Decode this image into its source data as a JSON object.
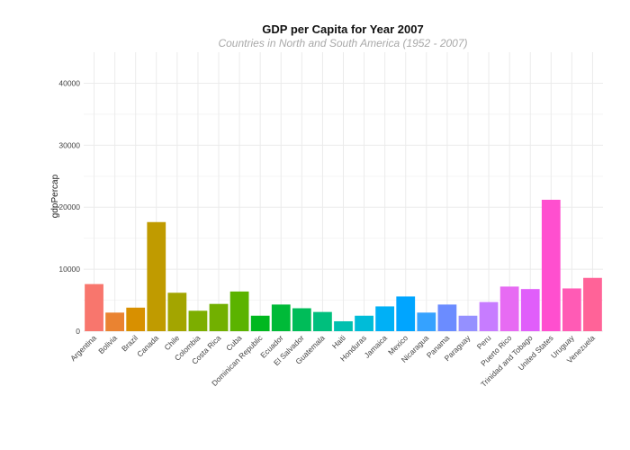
{
  "chart_data": {
    "type": "bar",
    "title": "GDP per Capita for Year 2007",
    "subtitle": "Countries in North and South America (1952 - 2007)",
    "xlabel": "",
    "ylabel": "gdpPercap",
    "ylim": [
      0,
      45000
    ],
    "yticks": [
      0,
      10000,
      20000,
      30000,
      40000
    ],
    "grid": true,
    "legend": "none",
    "categories": [
      "Argentina",
      "Bolivia",
      "Brazil",
      "Canada",
      "Chile",
      "Colombia",
      "Costa Rica",
      "Cuba",
      "Dominican Republic",
      "Ecuador",
      "El Salvador",
      "Guatemala",
      "Haiti",
      "Honduras",
      "Jamaica",
      "Mexico",
      "Nicaragua",
      "Panama",
      "Paraguay",
      "Peru",
      "Puerto Rico",
      "Trinidad and Tobago",
      "United States",
      "Uruguay",
      "Venezuela"
    ],
    "values": [
      7600,
      3000,
      3800,
      17600,
      6200,
      3300,
      4400,
      6400,
      2500,
      4300,
      3700,
      3100,
      1600,
      2500,
      4000,
      5600,
      3000,
      4300,
      2500,
      4700,
      7200,
      6800,
      21200,
      6900,
      8600
    ],
    "colors": [
      "#F8766D",
      "#EA8331",
      "#D89000",
      "#C09B00",
      "#A3A500",
      "#7CAE00",
      "#72B000",
      "#5BB300",
      "#00B81F",
      "#00BA38",
      "#00BC59",
      "#00BF7D",
      "#00C0AF",
      "#00BCD8",
      "#00B0F6",
      "#00A5FF",
      "#35A2FF",
      "#6B8CFF",
      "#9590FF",
      "#C77CFF",
      "#E76BF3",
      "#E05EFA",
      "#FF4FCF",
      "#FF5BB5",
      "#FF6398"
    ]
  }
}
